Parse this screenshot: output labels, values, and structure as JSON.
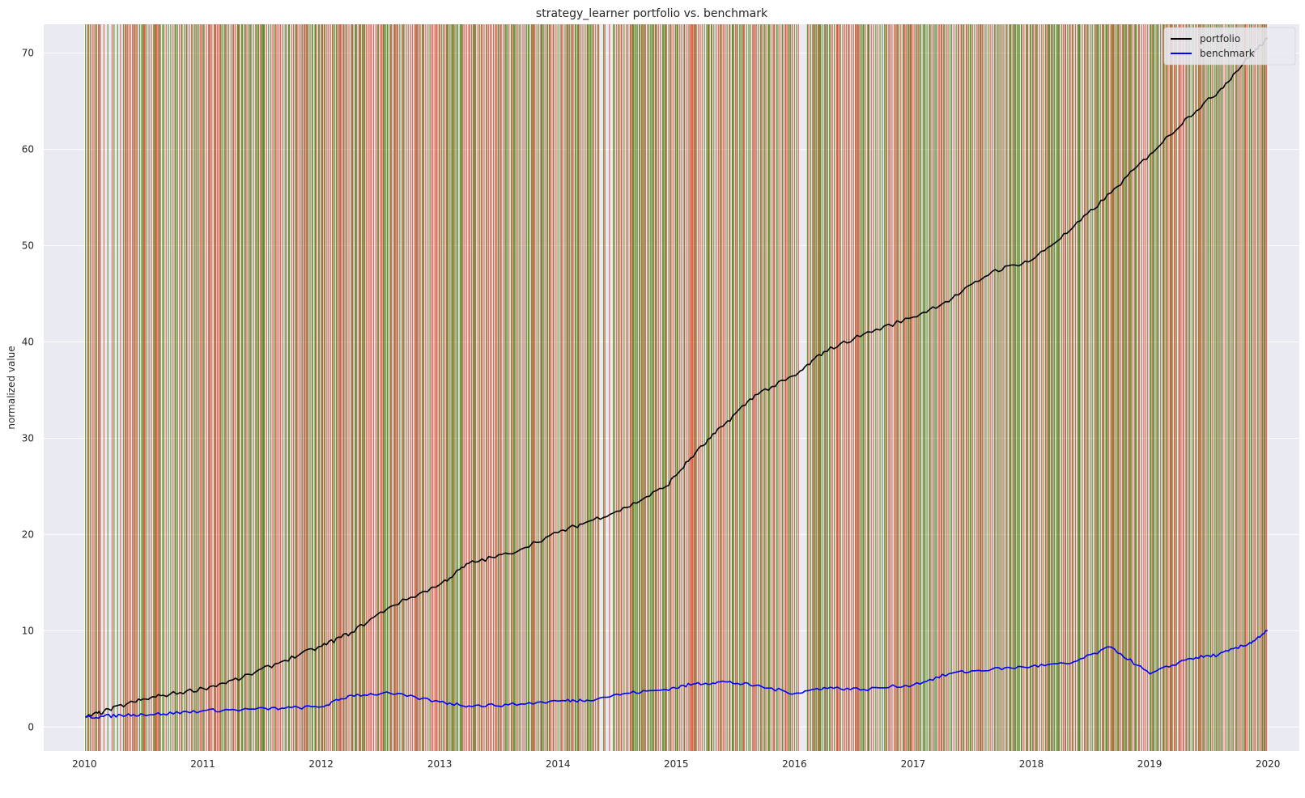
{
  "chart_data": {
    "type": "line",
    "title": "strategy_learner portfolio vs. benchmark",
    "xlabel": "",
    "ylabel": "normalized value",
    "xlim": [
      "2009-08-28",
      "2020-04-07"
    ],
    "ylim": [
      -2.5,
      73
    ],
    "x_ticks": [
      "2010",
      "2011",
      "2012",
      "2013",
      "2014",
      "2015",
      "2016",
      "2017",
      "2018",
      "2019",
      "2020"
    ],
    "y_ticks": [
      0,
      10,
      20,
      30,
      40,
      50,
      60,
      70
    ],
    "grid": true,
    "legend_position": "top-right",
    "colors": {
      "background": "#eaeaf2",
      "grid": "#ffffff",
      "portfolio": "#000000",
      "benchmark": "#0000ff",
      "long_signal": "#4a7a00",
      "short_signal": "#e04020",
      "overlap": "#8c5a1e"
    },
    "series": [
      {
        "name": "portfolio",
        "x": [
          "2010-01-04",
          "2010-03-01",
          "2010-06-01",
          "2010-09-01",
          "2011-01-03",
          "2011-05-02",
          "2011-09-01",
          "2012-01-03",
          "2012-04-02",
          "2012-08-01",
          "2013-01-02",
          "2013-04-01",
          "2013-08-01",
          "2014-01-02",
          "2014-04-01",
          "2014-08-01",
          "2014-12-01",
          "2015-03-02",
          "2015-06-01",
          "2015-09-01",
          "2016-01-04",
          "2016-04-01",
          "2016-08-01",
          "2017-01-03",
          "2017-05-01",
          "2017-09-01",
          "2018-01-02",
          "2018-05-01",
          "2018-09-04",
          "2019-01-02",
          "2019-05-01",
          "2019-08-01",
          "2019-11-01",
          "2019-12-31"
        ],
        "y": [
          1.0,
          1.6,
          2.6,
          3.3,
          4.0,
          5.1,
          6.8,
          8.4,
          9.8,
          12.5,
          14.8,
          17.0,
          18.0,
          20.2,
          21.3,
          22.8,
          25.0,
          28.5,
          31.5,
          34.5,
          36.5,
          39.0,
          40.8,
          42.6,
          44.5,
          47.3,
          48.5,
          51.6,
          55.5,
          59.5,
          63.4,
          66.0,
          69.5,
          71.5
        ]
      },
      {
        "name": "benchmark",
        "x": [
          "2010-01-04",
          "2010-03-01",
          "2010-06-01",
          "2010-09-01",
          "2011-01-03",
          "2011-05-02",
          "2011-09-01",
          "2012-01-03",
          "2012-04-02",
          "2012-08-01",
          "2013-01-02",
          "2013-04-01",
          "2013-08-01",
          "2014-01-02",
          "2014-04-01",
          "2014-08-01",
          "2014-12-01",
          "2015-03-02",
          "2015-06-01",
          "2015-09-01",
          "2016-01-04",
          "2016-04-01",
          "2016-08-01",
          "2017-01-03",
          "2017-05-01",
          "2017-09-01",
          "2018-01-02",
          "2018-05-01",
          "2018-09-04",
          "2019-01-02",
          "2019-05-01",
          "2019-08-01",
          "2019-11-01",
          "2019-12-31"
        ],
        "y": [
          1.0,
          1.1,
          1.3,
          1.35,
          1.7,
          1.8,
          1.95,
          2.1,
          3.3,
          3.5,
          2.6,
          2.2,
          2.3,
          2.7,
          2.8,
          3.5,
          3.9,
          4.5,
          4.7,
          4.3,
          3.5,
          4.1,
          3.9,
          4.4,
          5.6,
          6.0,
          6.3,
          6.6,
          8.3,
          5.5,
          7.1,
          7.5,
          8.6,
          10.0
        ]
      }
    ]
  }
}
